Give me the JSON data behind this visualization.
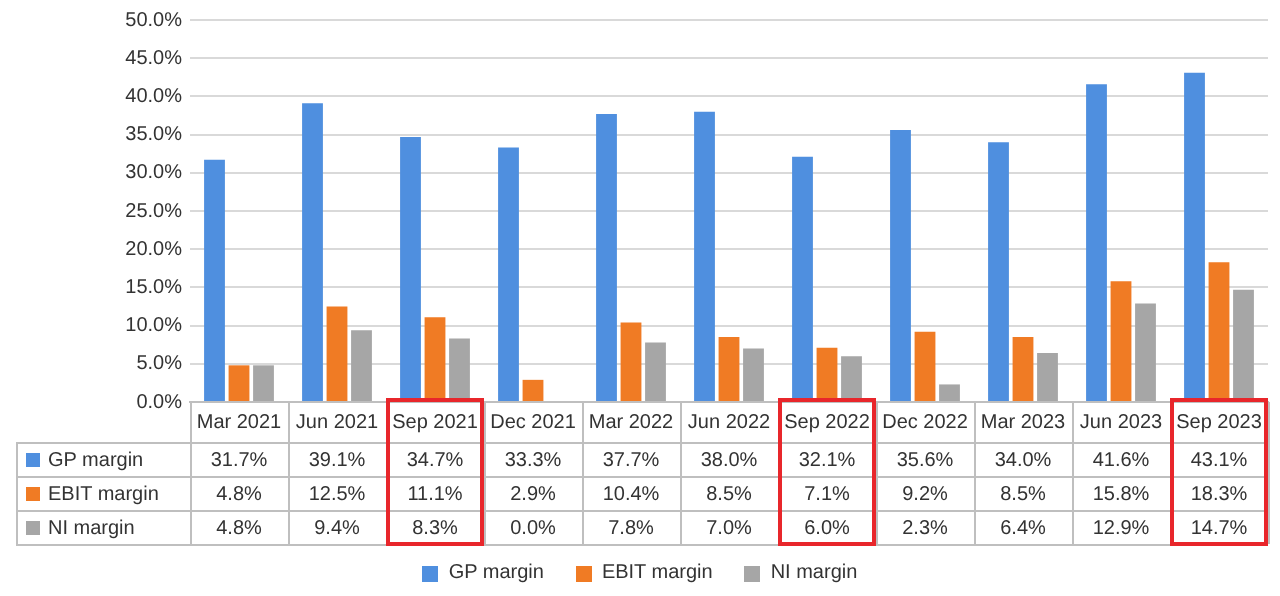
{
  "chart_data": {
    "type": "bar",
    "categories": [
      "Mar 2021",
      "Jun 2021",
      "Sep 2021",
      "Dec 2021",
      "Mar 2022",
      "Jun 2022",
      "Sep 2022",
      "Dec 2022",
      "Mar 2023",
      "Jun 2023",
      "Sep 2023"
    ],
    "series": [
      {
        "name": "GP margin",
        "color": "#4f8fdf",
        "values": [
          31.7,
          39.1,
          34.7,
          33.3,
          37.7,
          38.0,
          32.1,
          35.6,
          34.0,
          41.6,
          43.1
        ],
        "value_labels": [
          "31.7%",
          "39.1%",
          "34.7%",
          "33.3%",
          "37.7%",
          "38.0%",
          "32.1%",
          "35.6%",
          "34.0%",
          "41.6%",
          "43.1%"
        ]
      },
      {
        "name": "EBIT margin",
        "color": "#f07b24",
        "values": [
          4.8,
          12.5,
          11.1,
          2.9,
          10.4,
          8.5,
          7.1,
          9.2,
          8.5,
          15.8,
          18.3
        ],
        "value_labels": [
          "4.8%",
          "12.5%",
          "11.1%",
          "2.9%",
          "10.4%",
          "8.5%",
          "7.1%",
          "9.2%",
          "8.5%",
          "15.8%",
          "18.3%"
        ]
      },
      {
        "name": "NI margin",
        "color": "#a6a6a6",
        "values": [
          4.8,
          9.4,
          8.3,
          0.0,
          7.8,
          7.0,
          6.0,
          2.3,
          6.4,
          12.9,
          14.7
        ],
        "value_labels": [
          "4.8%",
          "9.4%",
          "8.3%",
          "0.0%",
          "7.8%",
          "7.0%",
          "6.0%",
          "2.3%",
          "6.4%",
          "12.9%",
          "14.7%"
        ]
      }
    ],
    "ylim": [
      0,
      50
    ],
    "yticks": [
      {
        "value": 0,
        "label": "0.0%"
      },
      {
        "value": 5,
        "label": "5.0%"
      },
      {
        "value": 10,
        "label": "10.0%"
      },
      {
        "value": 15,
        "label": "15.0%"
      },
      {
        "value": 20,
        "label": "20.0%"
      },
      {
        "value": 25,
        "label": "25.0%"
      },
      {
        "value": 30,
        "label": "30.0%"
      },
      {
        "value": 35,
        "label": "35.0%"
      },
      {
        "value": 40,
        "label": "40.0%"
      },
      {
        "value": 45,
        "label": "45.0%"
      },
      {
        "value": 50,
        "label": "50.0%"
      }
    ],
    "grid": "y",
    "legend": "bottom"
  }
}
